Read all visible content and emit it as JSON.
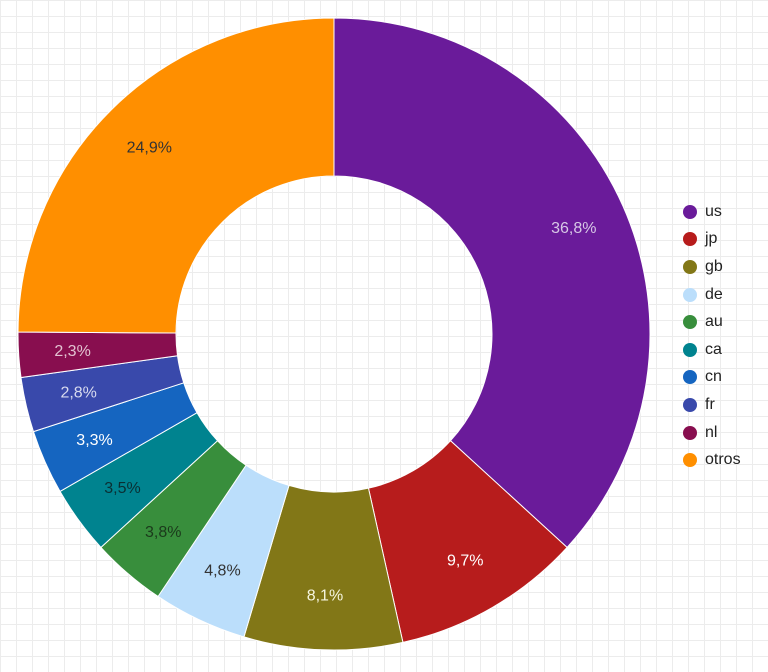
{
  "chart_data": {
    "type": "pie",
    "style": "donut",
    "start_angle_deg": 0,
    "direction": "clockwise",
    "legend_position": "right",
    "categories": [
      "us",
      "jp",
      "gb",
      "de",
      "au",
      "ca",
      "cn",
      "fr",
      "nl",
      "otros"
    ],
    "values": [
      36.8,
      9.7,
      8.1,
      4.8,
      3.8,
      3.5,
      3.3,
      2.8,
      2.3,
      24.9
    ],
    "labels": [
      "36,8%",
      "9,7%",
      "8,1%",
      "4,8%",
      "3,8%",
      "3,5%",
      "3,3%",
      "2,8%",
      "2,3%",
      "24,9%"
    ],
    "colors": [
      "#6a1b9a",
      "#b71c1c",
      "#827717",
      "#bbdefb",
      "#388e3c",
      "#00838f",
      "#1565c0",
      "#3949ab",
      "#880e4f",
      "#ff8f00"
    ],
    "label_colors": [
      "#d7c8e6",
      "#ffffff",
      "#f6f6e0",
      "#333333",
      "#1b3a1b",
      "#0a2f33",
      "#ffffff",
      "#d8dbef",
      "#e3c2d1",
      "#333333"
    ]
  }
}
